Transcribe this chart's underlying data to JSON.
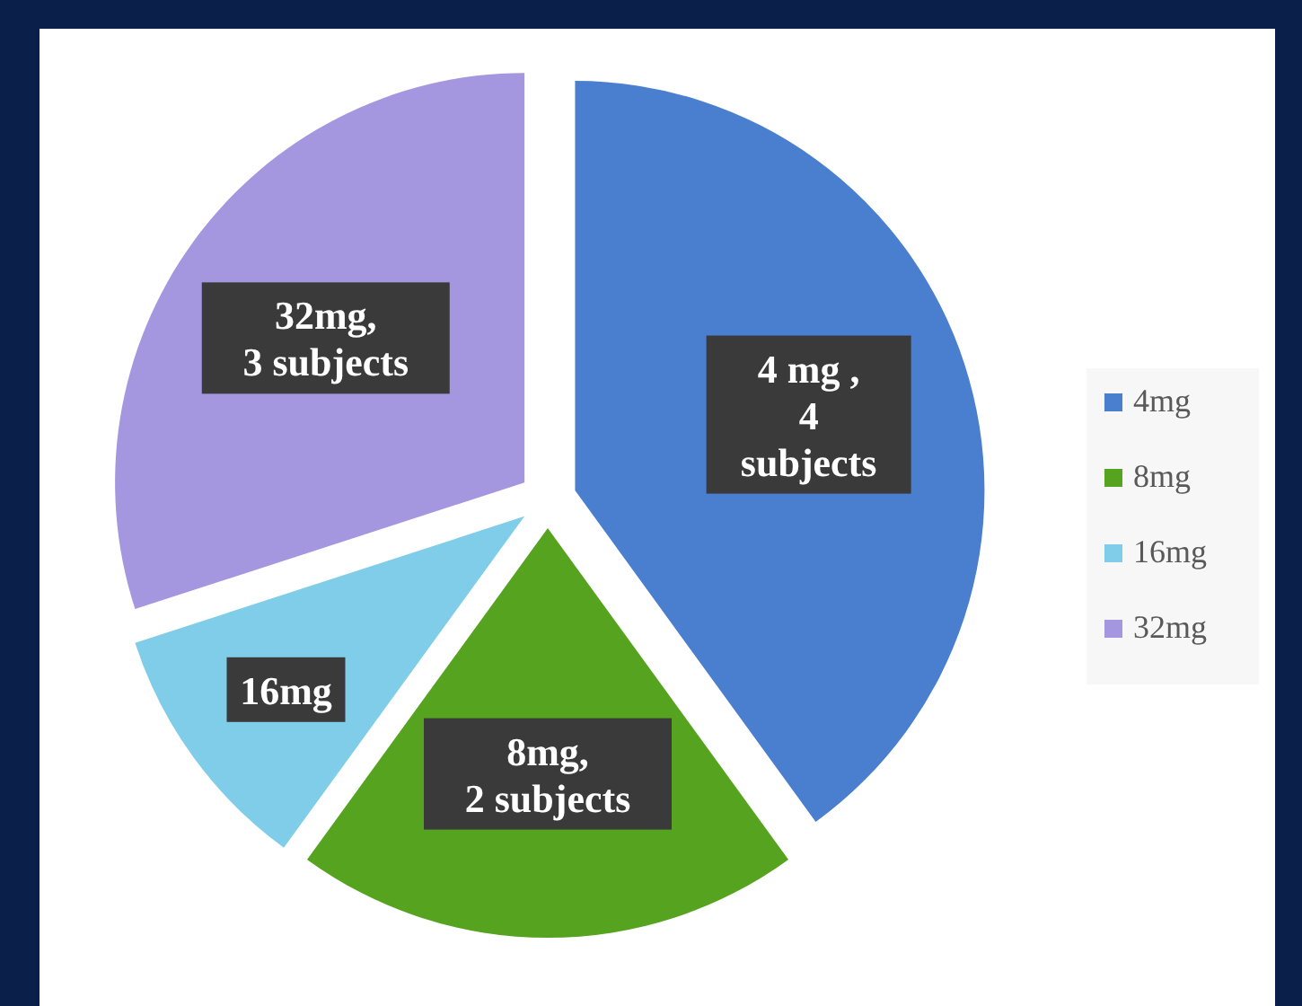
{
  "chart_data": {
    "type": "pie",
    "categories": [
      "4mg",
      "8mg",
      "16mg",
      "32mg"
    ],
    "values": [
      4,
      2,
      1,
      3
    ],
    "colors": [
      "#4a7fcf",
      "#55a31f",
      "#7fcde9",
      "#a497e0"
    ],
    "value_labels": [
      "4 mg ,\n4\nsubjects",
      "8mg,\n2 subjects",
      null,
      "32mg,\n3 subjects"
    ],
    "legend": "right"
  }
}
